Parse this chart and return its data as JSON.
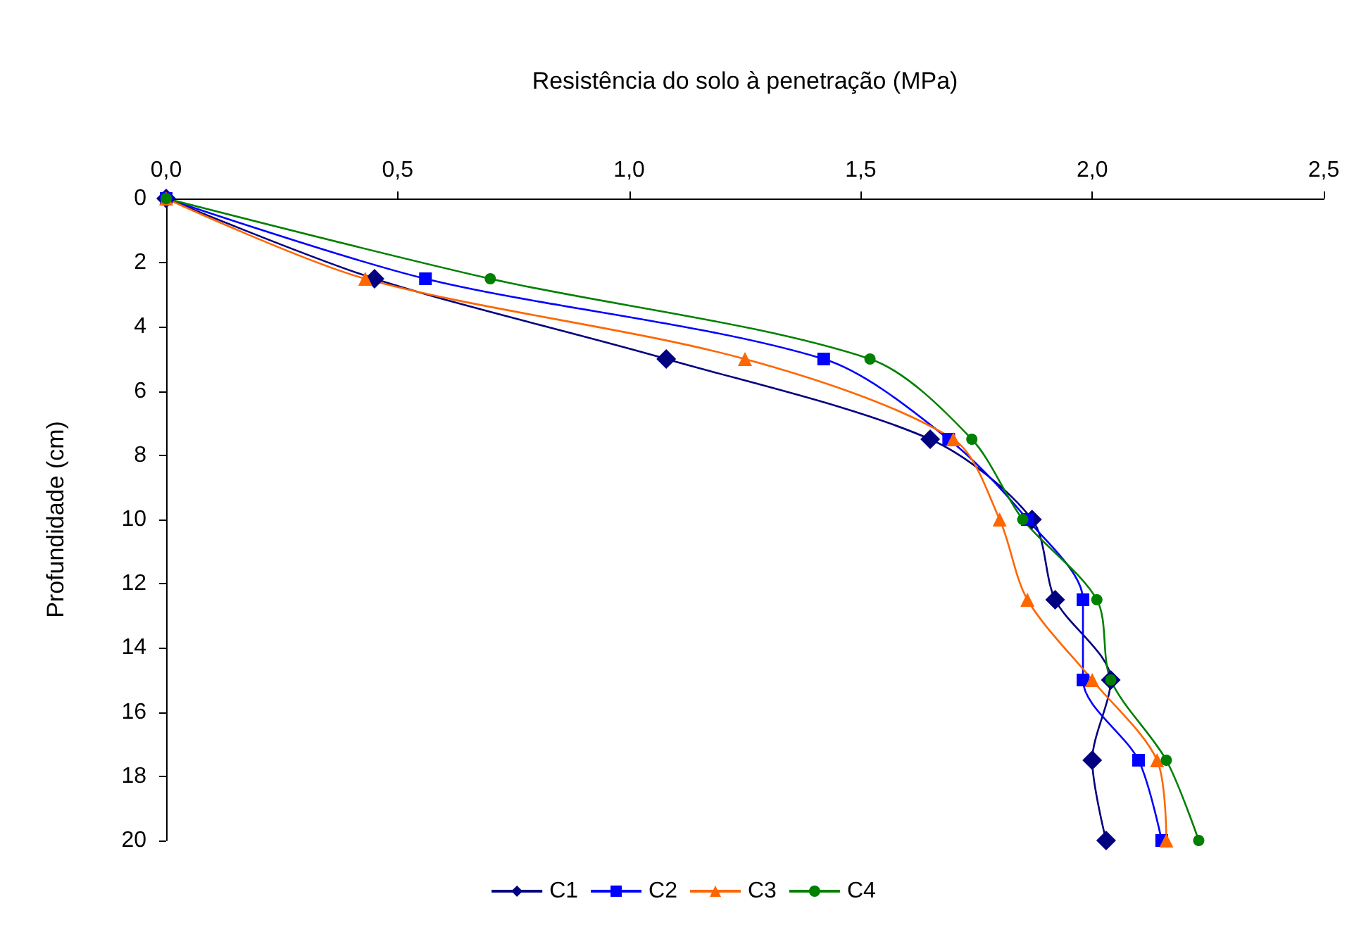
{
  "chart_data": {
    "type": "line",
    "xlabel": "Resistência do solo à penetração (MPa)",
    "ylabel": "Profundidade (cm)",
    "xlim": [
      0,
      2.5
    ],
    "xticks": [
      {
        "value": 0,
        "label": "0,0"
      },
      {
        "value": 0.5,
        "label": "0,5"
      },
      {
        "value": 1,
        "label": "1,0"
      },
      {
        "value": 1.5,
        "label": "1,5"
      },
      {
        "value": 2,
        "label": "2,0"
      },
      {
        "value": 2.5,
        "label": "2,5"
      }
    ],
    "ylim": [
      20,
      0
    ],
    "yticks": [
      0,
      2,
      4,
      6,
      8,
      10,
      12,
      14,
      16,
      18,
      20
    ],
    "grid": false,
    "legend": "bottom",
    "line_style": "solid",
    "series": [
      {
        "name": "C1",
        "color": "#000080",
        "marker": "diamond",
        "x": [
          0,
          0.45,
          1.08,
          1.65,
          1.87,
          1.92,
          2.04,
          2.0,
          2.03
        ],
        "values": [
          0,
          2.5,
          5,
          7.5,
          10,
          12.5,
          15,
          17.5,
          20
        ]
      },
      {
        "name": "C2",
        "color": "#0000ff",
        "marker": "square",
        "x": [
          0,
          0.56,
          1.42,
          1.69,
          1.86,
          1.98,
          1.98,
          2.1,
          2.15
        ],
        "values": [
          0,
          2.5,
          5,
          7.5,
          10,
          12.5,
          15,
          17.5,
          20
        ]
      },
      {
        "name": "C3",
        "color": "#ff6600",
        "marker": "triangle",
        "x": [
          0,
          0.43,
          1.25,
          1.7,
          1.8,
          1.86,
          2.0,
          2.14,
          2.16
        ],
        "values": [
          0,
          2.5,
          5,
          7.5,
          10,
          12.5,
          15,
          17.5,
          20
        ]
      },
      {
        "name": "C4",
        "color": "#008000",
        "marker": "circle",
        "x": [
          0,
          0.7,
          1.52,
          1.74,
          1.85,
          2.01,
          2.04,
          2.16,
          2.23
        ],
        "values": [
          0,
          2.5,
          5,
          7.5,
          10,
          12.5,
          15,
          17.5,
          20
        ]
      }
    ]
  }
}
